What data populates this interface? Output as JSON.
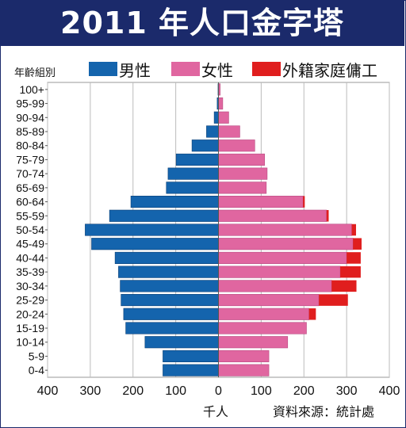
{
  "title": "2011 年人口金字塔",
  "legend": [
    {
      "label": "男性",
      "color": "#1464ad"
    },
    {
      "label": "女性",
      "color": "#e066a0"
    },
    {
      "label": "外籍家庭傭工",
      "color": "#e01e1e"
    }
  ],
  "age_header": "年齡組別",
  "x_unit": "千人",
  "source": "資料來源：統計處",
  "chart_data": {
    "type": "bar",
    "orientation": "horizontal-pyramid",
    "categories": [
      "100+",
      "95-99",
      "90-94",
      "85-89",
      "80-84",
      "75-79",
      "70-74",
      "65-69",
      "60-64",
      "55-59",
      "50-54",
      "45-49",
      "40-44",
      "35-39",
      "30-34",
      "25-29",
      "20-24",
      "15-19",
      "10-14",
      "5-9",
      "0-4"
    ],
    "series": [
      {
        "name": "男性",
        "side": "left",
        "values": [
          1,
          3,
          10,
          28,
          62,
          99,
          118,
          122,
          205,
          255,
          312,
          297,
          242,
          234,
          230,
          228,
          222,
          217,
          172,
          130,
          130
        ]
      },
      {
        "name": "女性",
        "side": "right",
        "values": [
          4,
          10,
          24,
          50,
          85,
          108,
          114,
          112,
          198,
          253,
          312,
          315,
          300,
          285,
          265,
          235,
          212,
          206,
          162,
          118,
          118
        ]
      },
      {
        "name": "外籍家庭傭工",
        "side": "right",
        "stacked_on": "女性",
        "values": [
          0,
          0,
          0,
          0,
          0,
          0,
          0,
          0,
          4,
          5,
          10,
          20,
          33,
          48,
          58,
          68,
          16,
          0,
          0,
          0,
          0
        ]
      }
    ],
    "xticks": [
      "400",
      "300",
      "200",
      "100",
      "0",
      "100",
      "200",
      "300",
      "400"
    ],
    "xlim": [
      -400,
      400
    ],
    "grid": true
  }
}
